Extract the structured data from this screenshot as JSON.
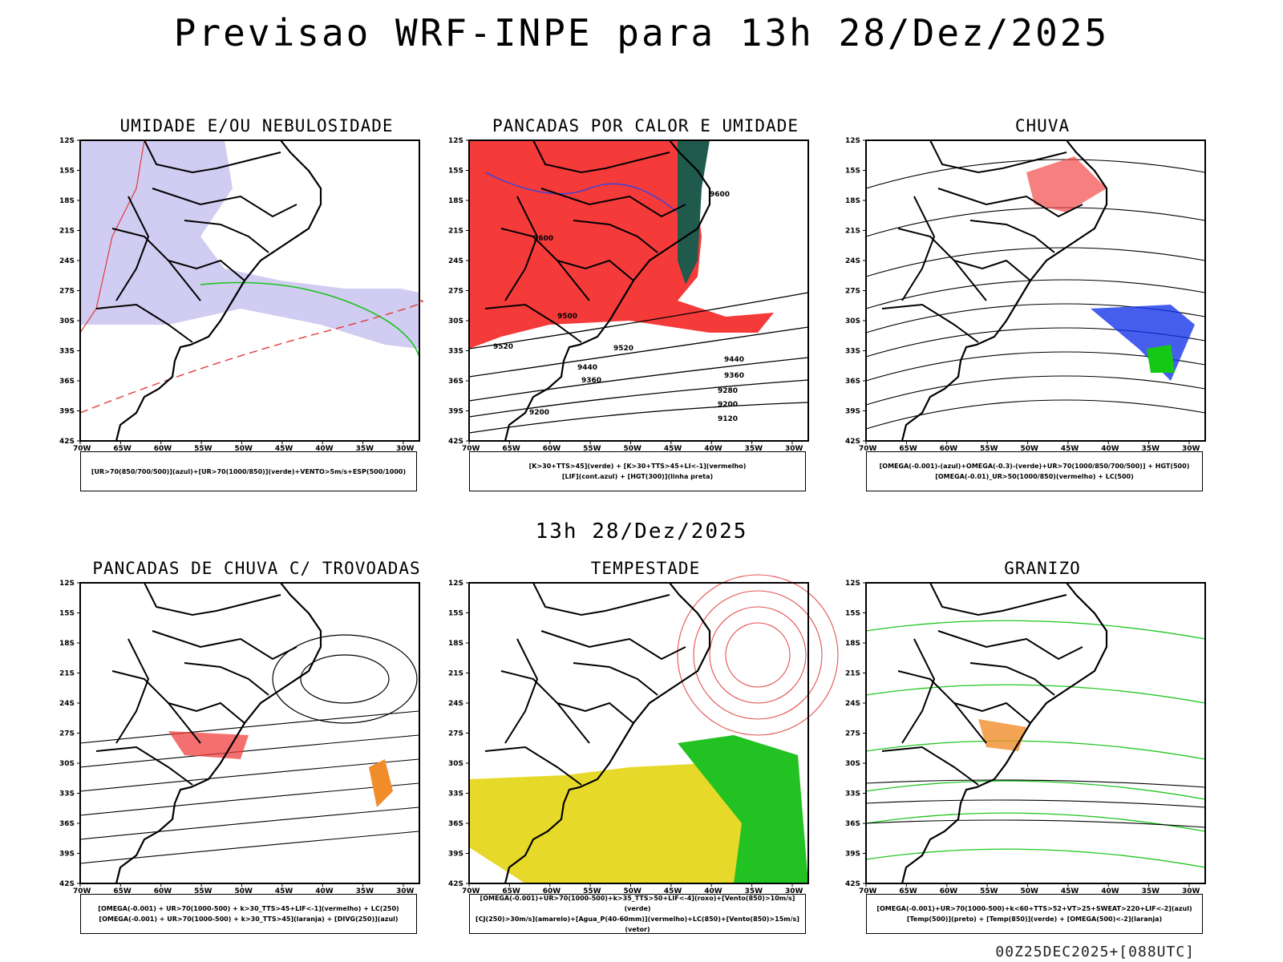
{
  "title": "Previsao WRF-INPE  para 13h 28/Dez/2025",
  "subtitle": "13h 28/Dez/2025",
  "run_stamp": "00Z25DEC2025+[088UTC]",
  "axes": {
    "lat": [
      "12S",
      "15S",
      "18S",
      "21S",
      "24S",
      "27S",
      "30S",
      "33S",
      "36S",
      "39S",
      "42S"
    ],
    "lon": [
      "70W",
      "65W",
      "60W",
      "55W",
      "50W",
      "45W",
      "40W",
      "35W",
      "30W"
    ]
  },
  "panels": [
    {
      "title": "UMIDADE E/OU NEBULOSIDADE",
      "legend": [
        "[UR>70(850/700/500)](azul)+[UR>70(1000/850)](verde)+VENTO>5m/s+ESP(500/1000)"
      ]
    },
    {
      "title": "PANCADAS POR CALOR E UMIDADE",
      "legend": [
        "[K>30+TTS>45](verde) + [K>30+TTS>45+LI<-1](vermelho)",
        "[LIF](cont.azul) + [HGT(300)](linha preta)"
      ],
      "contours": [
        "9600",
        "9600",
        "9520",
        "9520",
        "9500",
        "9440",
        "9440",
        "9360",
        "9360",
        "9280",
        "9200",
        "9200",
        "9120"
      ]
    },
    {
      "title": "CHUVA",
      "legend": [
        "[OMEGA(-0.001)-(azul)+OMEGA(-0.3)-(verde)+UR>70(1000/850/700/500)] + HGT(500)",
        "[OMEGA(-0.01)_UR>50(1000/850)(vermelho) + LC(500)"
      ]
    },
    {
      "title": "PANCADAS DE CHUVA C/ TROVOADAS",
      "legend": [
        "[OMEGA(-0.001) + UR>70(1000-500) + k>30_TTS>45+LIF<-1](vermelho) + LC(250)",
        "[OMEGA(-0.001) + UR>70(1000-500) + k>30_TTS>45](laranja) + [DIVG(250)](azul)"
      ]
    },
    {
      "title": "TEMPESTADE",
      "legend": [
        "[OMEGA(-0.001)+UR>70(1000-500)+k>35_TTS>50+LIF<-4](roxo)+[Vento(850)>10m/s](verde)",
        "[CJ(250)>30m/s](amarelo)+[Agua_P(40-60mm)](vermelho)+LC(850)+[Vento(850)>15m/s](vetor)"
      ]
    },
    {
      "title": "GRANIZO",
      "legend": [
        "[OMEGA(-0.001)+UR>70(1000-500)+k<60+TTS>52+VT>25+SWEAT>220+LIF<-2](azul)",
        "[Temp(500)](preto) + [Temp(850)](verde) + [OMEGA(500)<-2](laranja)"
      ]
    }
  ]
}
